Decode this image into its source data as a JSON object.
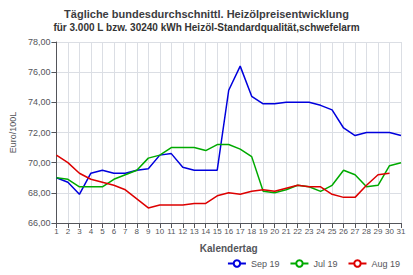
{
  "chart_data": {
    "type": "line",
    "title": "Tägliche bundesdurchschnittl. Heizölpreisentwicklung",
    "subtitle": "für 3.000 L bzw. 30240 kWh Heizöl-Standardqualität,schwefelarm",
    "xlabel": "Kalendertag",
    "ylabel": "Euro/100L",
    "x": [
      1,
      2,
      3,
      4,
      5,
      6,
      7,
      8,
      9,
      10,
      11,
      12,
      13,
      14,
      15,
      16,
      17,
      18,
      19,
      20,
      21,
      22,
      23,
      24,
      25,
      26,
      27,
      28,
      29,
      30,
      31
    ],
    "xlim": [
      1,
      31
    ],
    "xticks": [
      1,
      2,
      3,
      4,
      5,
      6,
      7,
      8,
      9,
      10,
      11,
      12,
      13,
      14,
      15,
      16,
      17,
      18,
      19,
      20,
      21,
      22,
      23,
      24,
      25,
      26,
      27,
      28,
      29,
      30,
      31
    ],
    "ylim": [
      66.0,
      78.0
    ],
    "yticks": [
      {
        "value": 66.0,
        "label": "66,00"
      },
      {
        "value": 68.0,
        "label": "68,00"
      },
      {
        "value": 70.0,
        "label": "70,00"
      },
      {
        "value": 72.0,
        "label": "72,00"
      },
      {
        "value": 74.0,
        "label": "74,00"
      },
      {
        "value": 76.0,
        "label": "76,00"
      },
      {
        "value": 78.0,
        "label": "78,00"
      }
    ],
    "grid": true,
    "legend": "lower right",
    "series": [
      {
        "name": "Sep 19",
        "color": "#0000dd",
        "values": [
          69.0,
          68.7,
          67.9,
          69.3,
          69.5,
          69.3,
          69.3,
          69.5,
          69.6,
          70.5,
          70.6,
          69.7,
          69.5,
          69.5,
          69.5,
          74.8,
          76.4,
          74.4,
          73.9,
          73.9,
          74.0,
          74.0,
          74.0,
          73.8,
          73.5,
          72.3,
          71.8,
          72.0,
          72.0,
          72.0,
          71.8
        ]
      },
      {
        "name": "Jul 19",
        "color": "#00aa00",
        "values": [
          69.0,
          68.9,
          68.4,
          68.4,
          68.4,
          68.9,
          69.2,
          69.5,
          70.3,
          70.5,
          71.0,
          71.0,
          71.0,
          70.8,
          71.2,
          71.2,
          70.9,
          70.4,
          68.1,
          68.0,
          68.2,
          68.5,
          68.4,
          68.1,
          68.5,
          69.5,
          69.2,
          68.4,
          68.5,
          69.8,
          70.0
        ]
      },
      {
        "name": "Aug 19",
        "color": "#dd0000",
        "values": [
          70.5,
          70.0,
          69.3,
          68.9,
          68.7,
          68.5,
          68.2,
          67.6,
          67.0,
          67.2,
          67.2,
          67.2,
          67.3,
          67.3,
          67.8,
          68.0,
          67.9,
          68.1,
          68.2,
          68.1,
          68.3,
          68.5,
          68.4,
          68.4,
          67.9,
          67.7,
          67.7,
          68.5,
          69.2,
          69.3,
          null
        ]
      }
    ]
  }
}
